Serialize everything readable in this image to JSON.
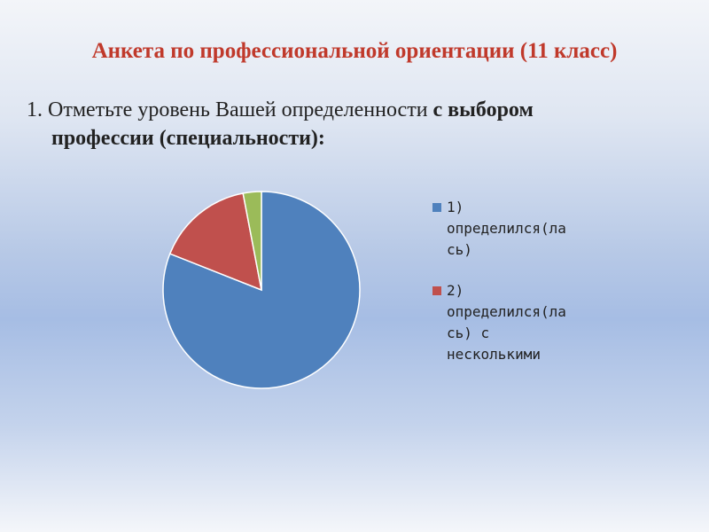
{
  "title": "Анкета по профессиональной ориентации (11 класс)",
  "question": {
    "prefix": "1. Отметьте уровень Вашей определенности ",
    "bold_1": "с выбором",
    "bold_2": "профессии (специальности):"
  },
  "chart_data": {
    "type": "pie",
    "categories": [
      "1) определился(лась)",
      "2) определился(лась) с несколькими",
      ""
    ],
    "values": [
      81,
      16,
      3
    ],
    "colors": [
      "#4f81bd",
      "#c0504d",
      "#9bbb59"
    ],
    "legend_placement": "right"
  },
  "legend": [
    {
      "lines": [
        "1)",
        "определился(ла",
        "сь)"
      ],
      "color": "#4f81bd"
    },
    {
      "lines": [
        "2)",
        "определился(ла",
        "сь) с",
        "несколькими"
      ],
      "color": "#c0504d"
    }
  ]
}
